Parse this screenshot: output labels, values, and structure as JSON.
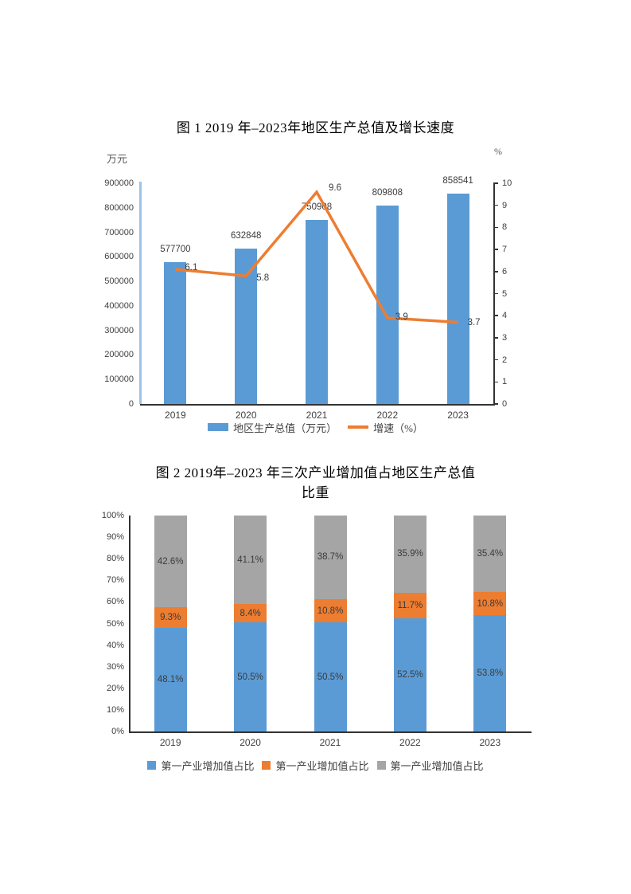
{
  "colors": {
    "bar_blue": "#5b9bd5",
    "line_orange": "#ed7d31",
    "stack_gray": "#a5a5a5",
    "axis_light_blue": "#9dc3e6",
    "axis_dark": "#333333",
    "label_dark": "#3b3b3b"
  },
  "chart_data": [
    {
      "type": "bar",
      "subtype": "bar+line-combo",
      "title": "图 1 2019 年–2023年地区生产总值及增长速度",
      "left_axis_unit": "万元",
      "right_axis_unit": "%",
      "categories": [
        "2019",
        "2020",
        "2021",
        "2022",
        "2023"
      ],
      "series": [
        {
          "name": "地区生产总值（万元）",
          "kind": "bar",
          "color": "#5b9bd5",
          "axis": "left",
          "values": [
            577700,
            632848,
            750908,
            809808,
            858541
          ]
        },
        {
          "name": "增速（%）",
          "kind": "line",
          "color": "#ed7d31",
          "axis": "right",
          "values": [
            6.1,
            5.8,
            9.6,
            3.9,
            3.7
          ]
        }
      ],
      "left_axis": {
        "min": 0,
        "max": 900000,
        "step": 100000
      },
      "right_axis": {
        "min": 0,
        "max": 10,
        "step": 1
      },
      "grid": false,
      "legend_position": "bottom",
      "legend": [
        "地区生产总值（万元）",
        "增速（%）"
      ]
    },
    {
      "type": "bar",
      "subtype": "stacked-100",
      "title": "图 2 2019年–2023 年三次产业增加值占地区生产总值比重",
      "title_lines": [
        "图 2 2019年–2023 年三次产业增加值占地区生产总值",
        "比重"
      ],
      "categories": [
        "2019",
        "2020",
        "2021",
        "2022",
        "2023"
      ],
      "series": [
        {
          "name": "第一产业增加值占比",
          "color": "#5b9bd5",
          "values": [
            48.1,
            50.5,
            50.5,
            52.5,
            53.8
          ]
        },
        {
          "name": "第一产业增加值占比",
          "color": "#ed7d31",
          "values": [
            9.3,
            8.4,
            10.8,
            11.7,
            10.8
          ]
        },
        {
          "name": "第一产业增加值占比",
          "color": "#a5a5a5",
          "values": [
            42.6,
            41.1,
            38.7,
            35.9,
            35.4
          ]
        }
      ],
      "y_axis": {
        "min": 0,
        "max": 100,
        "step": 10,
        "tick_suffix": "%"
      },
      "value_suffix": "%",
      "grid": false,
      "legend_position": "bottom",
      "legend": [
        "第一产业增加值占比",
        "第一产业增加值占比",
        "第一产业增加值占比"
      ]
    }
  ]
}
